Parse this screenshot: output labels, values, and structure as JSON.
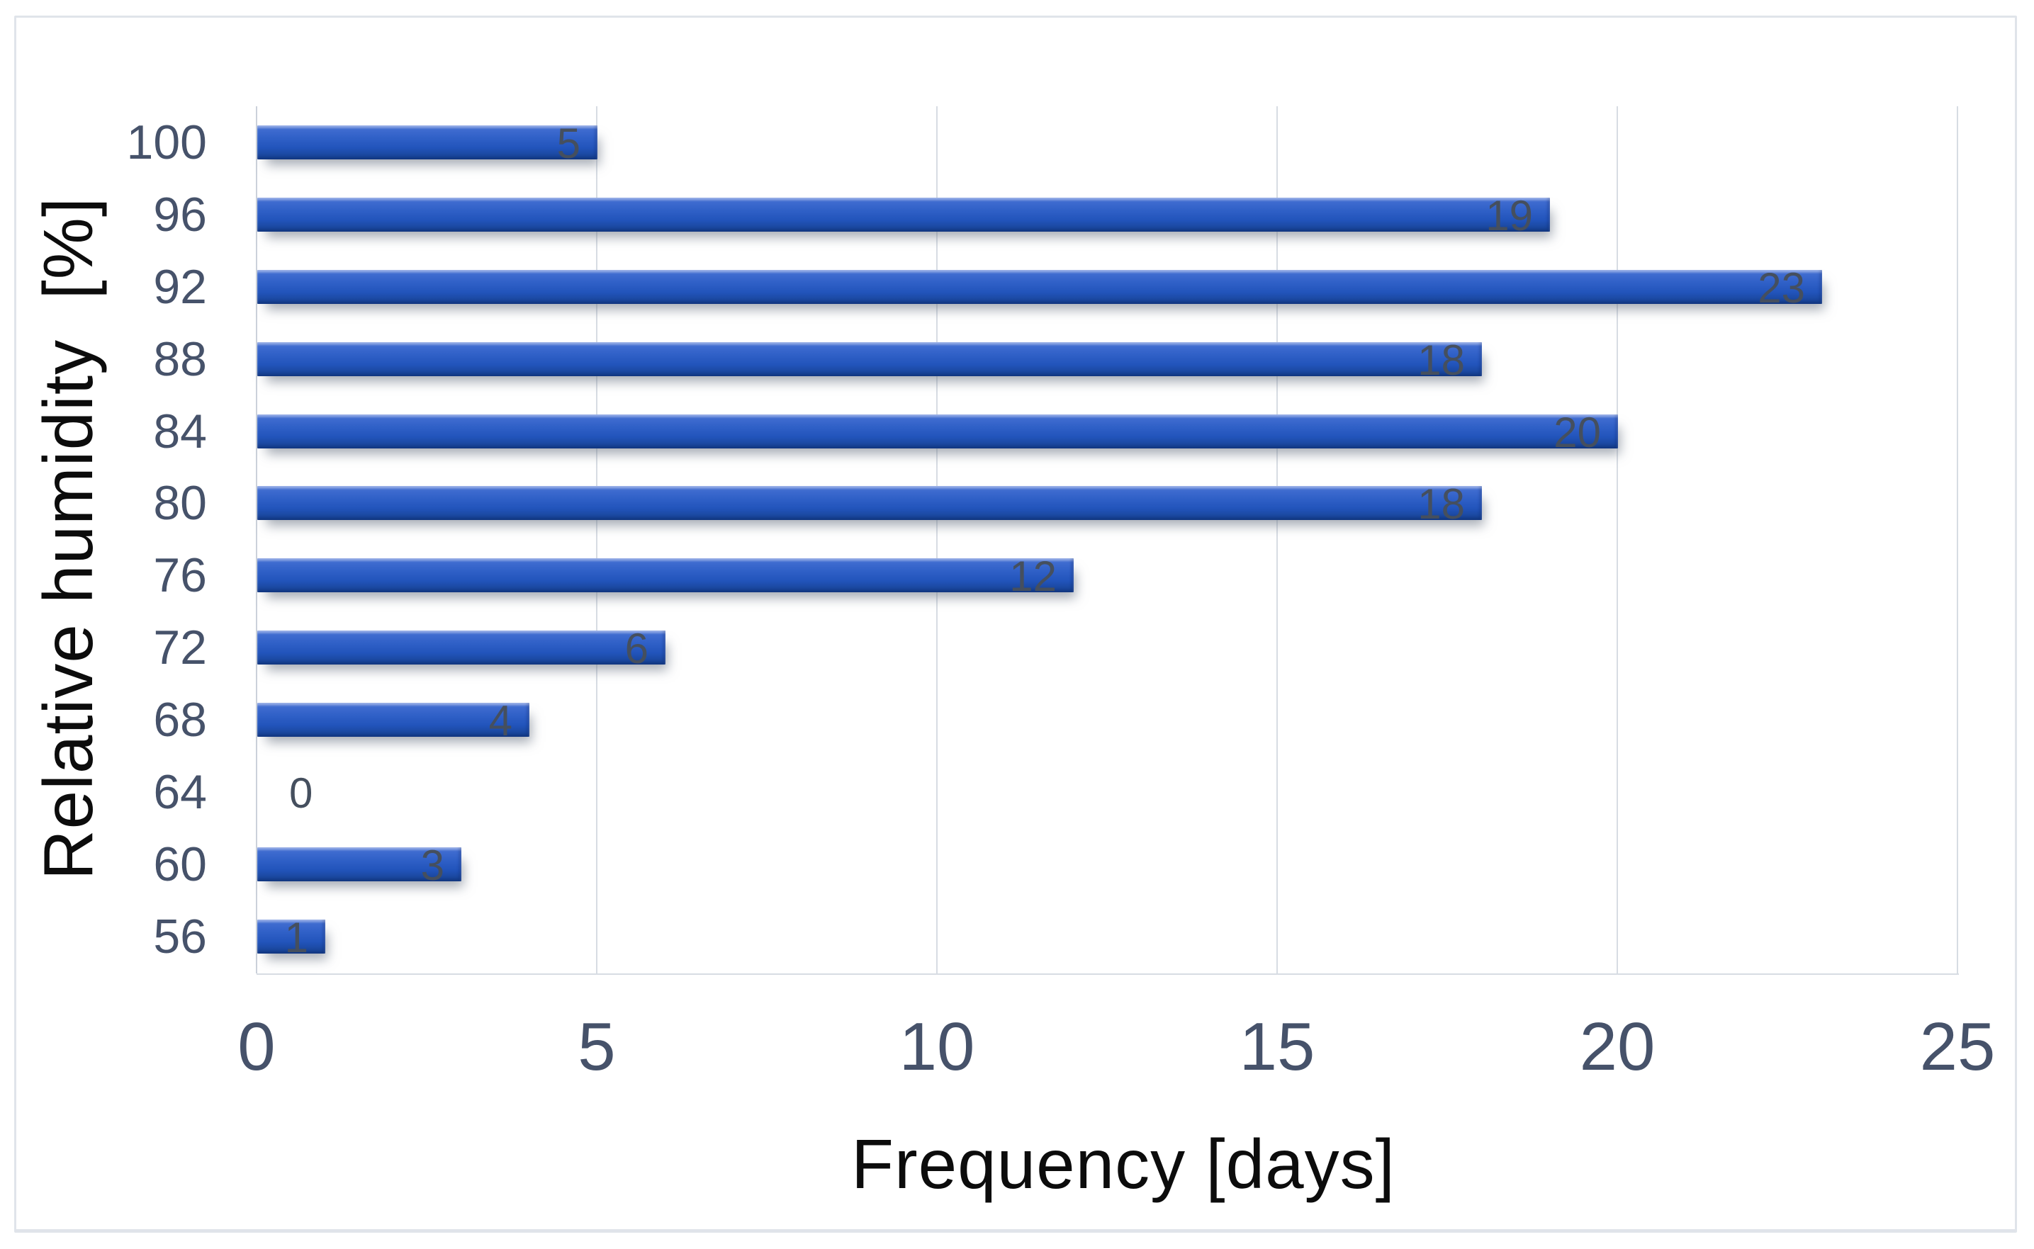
{
  "chart_data": {
    "type": "bar",
    "orientation": "horizontal",
    "title": "",
    "xlabel": "Frequency [days]",
    "ylabel": "Relative humidity  [%]",
    "categories": [
      "100",
      "96",
      "92",
      "88",
      "84",
      "80",
      "76",
      "72",
      "68",
      "64",
      "60",
      "56"
    ],
    "values": [
      5,
      19,
      23,
      18,
      20,
      18,
      12,
      6,
      4,
      0,
      3,
      1
    ],
    "xlim": [
      0,
      25
    ],
    "xticks": [
      "0",
      "5",
      "10",
      "15",
      "20",
      "25"
    ],
    "grid": {
      "vertical": true,
      "horizontal": false
    },
    "legend": {
      "visible": false
    },
    "data_labels": {
      "position": "inside-end"
    },
    "colors": {
      "bar_gradient_top": "#7d9ae2",
      "bar_gradient_upper": "#3f6cd0",
      "bar_mid": "#2e5fc6",
      "bar_gradient_lower": "#2254bb",
      "bar_gradient_bottom": "#16418f",
      "gridline": "#d7dce3",
      "axis_line": "#cbd1da",
      "tick_label": "#46526a",
      "data_label": "#454f5e",
      "axis_title": "#0c0c0c",
      "frame_border": "#e0e4ea",
      "background": "#ffffff"
    }
  }
}
